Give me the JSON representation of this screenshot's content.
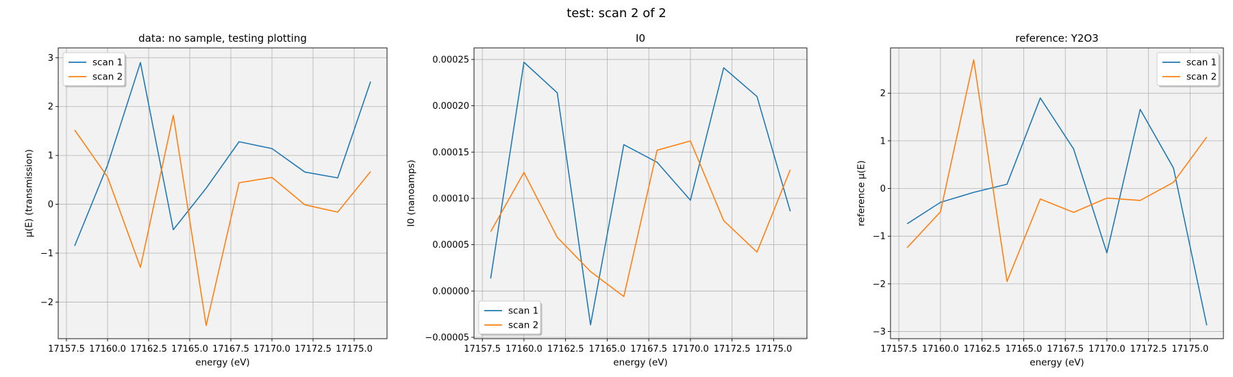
{
  "figure": {
    "suptitle": "test: scan 2 of 2"
  },
  "chart_data": [
    {
      "type": "line",
      "title": "data: no sample, testing plotting",
      "xlabel": "energy (eV)",
      "ylabel": "μ(E) (transmission)",
      "xlim": [
        17157.0,
        17177.0
      ],
      "ylim": [
        -2.75,
        3.2
      ],
      "xticks": [
        17157.5,
        17160.0,
        17162.5,
        17165.0,
        17167.5,
        17170.0,
        17172.5,
        17175.0
      ],
      "xtick_labels": [
        "17157.5",
        "17160.0",
        "17162.5",
        "17165.0",
        "17167.5",
        "17170.0",
        "17172.5",
        "17175.0"
      ],
      "yticks": [
        -2,
        -1,
        0,
        1,
        2,
        3
      ],
      "ytick_labels": [
        "−2",
        "−1",
        "0",
        "1",
        "2",
        "3"
      ],
      "grid": true,
      "legend": "upper-left",
      "x": [
        17158,
        17160,
        17162,
        17164,
        17166,
        17168,
        17170,
        17172,
        17174,
        17176
      ],
      "series": [
        {
          "name": "scan 1",
          "color": "#1f77b4",
          "values": [
            -0.85,
            0.8,
            2.9,
            -0.52,
            0.33,
            1.28,
            1.14,
            0.66,
            0.54,
            2.51
          ]
        },
        {
          "name": "scan 2",
          "color": "#ff7f0e",
          "values": [
            1.52,
            0.56,
            -1.29,
            1.82,
            -2.48,
            0.44,
            0.55,
            -0.01,
            -0.16,
            0.67
          ]
        }
      ]
    },
    {
      "type": "line",
      "title": "I0",
      "xlabel": "energy (eV)",
      "ylabel": "I0 (nanoamps)",
      "xlim": [
        17157.0,
        17177.0
      ],
      "ylim": [
        -5.15e-05,
        0.0002625
      ],
      "xticks": [
        17157.5,
        17160.0,
        17162.5,
        17165.0,
        17167.5,
        17170.0,
        17172.5,
        17175.0
      ],
      "xtick_labels": [
        "17157.5",
        "17160.0",
        "17162.5",
        "17165.0",
        "17167.5",
        "17170.0",
        "17172.5",
        "17175.0"
      ],
      "yticks": [
        -5e-05,
        0,
        5e-05,
        0.0001,
        0.00015,
        0.0002,
        0.00025
      ],
      "ytick_labels": [
        "−0.00005",
        "0.00000",
        "0.00005",
        "0.00010",
        "0.00015",
        "0.00020",
        "0.00025"
      ],
      "grid": true,
      "legend": "lower-left",
      "x": [
        17158,
        17160,
        17162,
        17164,
        17166,
        17168,
        17170,
        17172,
        17174,
        17176
      ],
      "series": [
        {
          "name": "scan 1",
          "color": "#1f77b4",
          "values": [
            1.35e-05,
            0.000247,
            0.000214,
            -3.65e-05,
            0.000158,
            0.000139,
            9.8e-05,
            0.000241,
            0.00021,
            8.6e-05
          ]
        },
        {
          "name": "scan 2",
          "color": "#ff7f0e",
          "values": [
            6.4e-05,
            0.000128,
            5.8e-05,
            2.1e-05,
            -6e-06,
            0.000152,
            0.000162,
            7.6e-05,
            4.2e-05,
            0.000131
          ]
        }
      ]
    },
    {
      "type": "line",
      "title": "reference: Y2O3",
      "xlabel": "energy (eV)",
      "ylabel": "reference μ(E)",
      "xlim": [
        17157.0,
        17177.0
      ],
      "ylim": [
        -3.15,
        2.95
      ],
      "xticks": [
        17157.5,
        17160.0,
        17162.5,
        17165.0,
        17167.5,
        17170.0,
        17172.5,
        17175.0
      ],
      "xtick_labels": [
        "17157.5",
        "17160.0",
        "17162.5",
        "17165.0",
        "17167.5",
        "17170.0",
        "17172.5",
        "17175.0"
      ],
      "yticks": [
        -3,
        -2,
        -1,
        0,
        1,
        2
      ],
      "ytick_labels": [
        "−3",
        "−2",
        "−1",
        "0",
        "1",
        "2"
      ],
      "grid": true,
      "legend": "upper-right",
      "x": [
        17158,
        17160,
        17162,
        17164,
        17166,
        17168,
        17170,
        17172,
        17174,
        17176
      ],
      "series": [
        {
          "name": "scan 1",
          "color": "#1f77b4",
          "values": [
            -0.74,
            -0.29,
            -0.08,
            0.09,
            1.9,
            0.83,
            -1.35,
            1.66,
            0.43,
            -2.87
          ]
        },
        {
          "name": "scan 2",
          "color": "#ff7f0e",
          "values": [
            -1.24,
            -0.49,
            2.7,
            -1.95,
            -0.22,
            -0.5,
            -0.2,
            -0.25,
            0.13,
            1.08
          ]
        }
      ]
    }
  ]
}
